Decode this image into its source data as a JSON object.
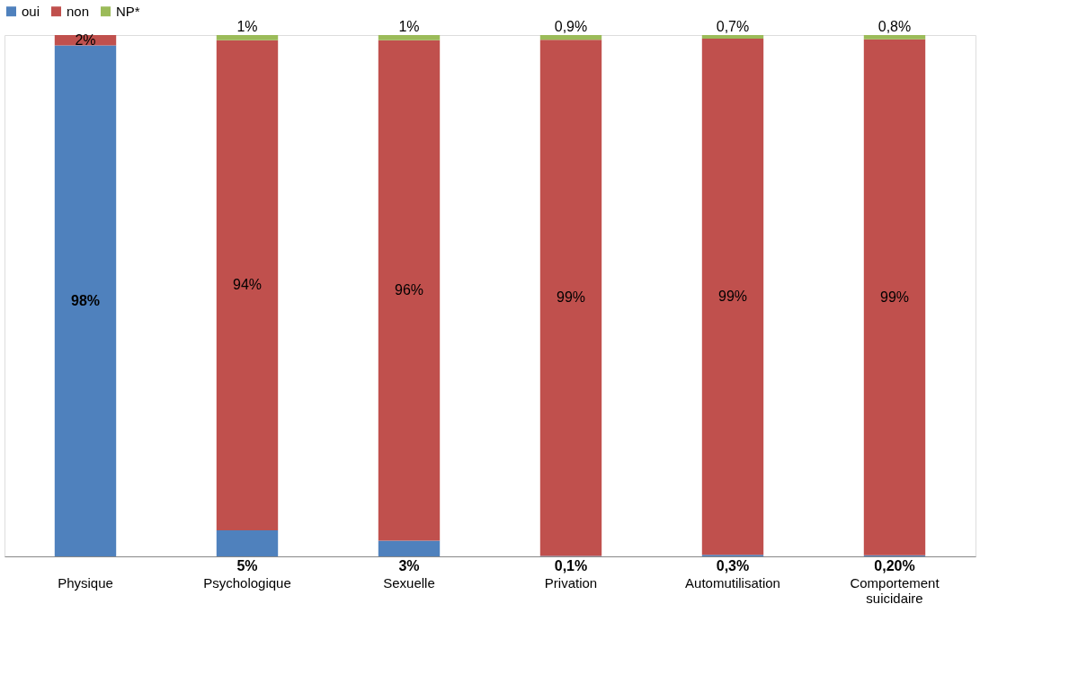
{
  "chart_data": {
    "type": "bar",
    "stacked": true,
    "legend": "top",
    "grid": false,
    "categories": [
      "Physique",
      "Psychologique",
      "Sexuelle",
      "Privation",
      "Automutilisation",
      "Comportement suicidaire"
    ],
    "series": [
      {
        "name": "oui",
        "color": "#4f81bd",
        "values": [
          98,
          5,
          3,
          0.1,
          0.3,
          0.2
        ],
        "value_labels": [
          "98%",
          "5%",
          "3%",
          "0,1%",
          "0,3%",
          "0,20%"
        ]
      },
      {
        "name": "non",
        "color": "#c0504d",
        "values": [
          2,
          94,
          96,
          99,
          99,
          99
        ],
        "value_labels": [
          "2%",
          "94%",
          "96%",
          "99%",
          "99%",
          "99%"
        ]
      },
      {
        "name": "NP*",
        "color": "#9bbb59",
        "values": [
          null,
          1,
          1,
          0.9,
          0.7,
          0.8
        ],
        "value_labels": [
          null,
          "1%",
          "1%",
          "0,9%",
          "0,7%",
          "0,8%"
        ]
      }
    ]
  }
}
